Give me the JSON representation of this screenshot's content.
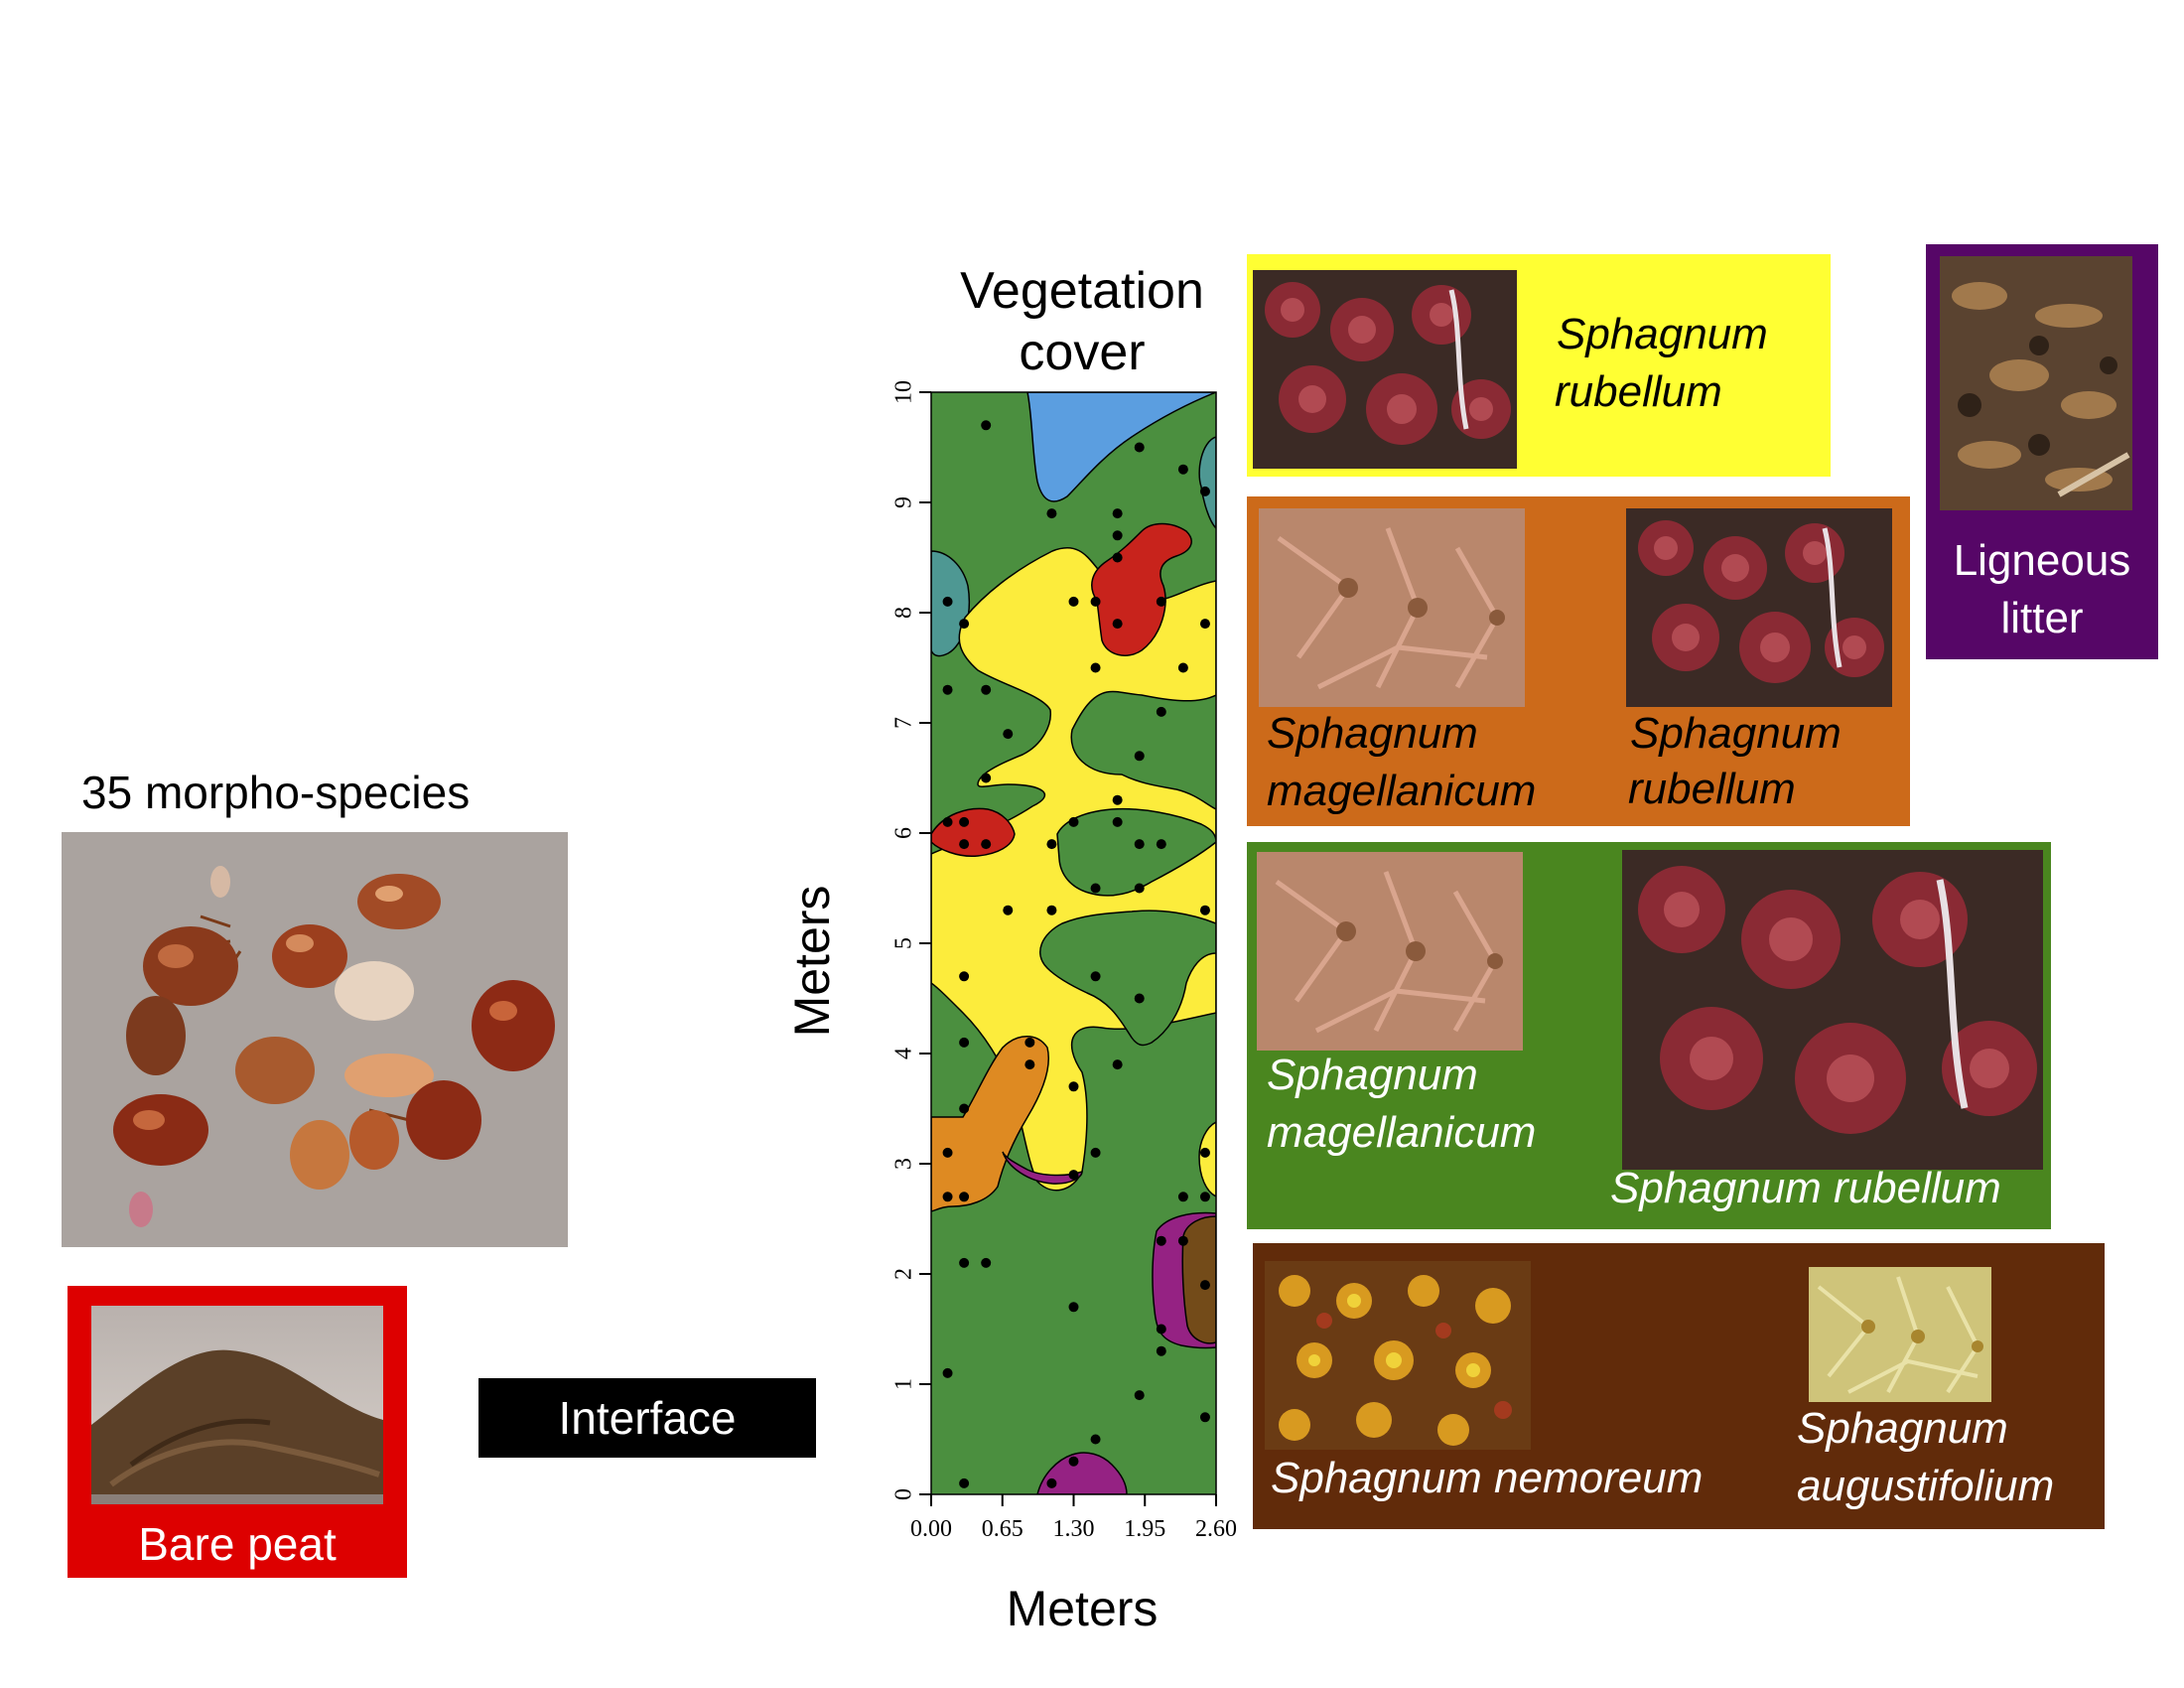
{
  "mites": {
    "caption": "35 morpho-species"
  },
  "bare_peat": {
    "label": "Bare peat",
    "color": "#dd0000"
  },
  "interface": {
    "label": "Interface",
    "color": "#000000"
  },
  "chart_data": {
    "type": "heatmap",
    "title": "Vegetation cover",
    "xlabel": "Meters",
    "ylabel": "Meters",
    "xlim": [
      0,
      2.6
    ],
    "ylim": [
      0,
      10
    ],
    "x_ticks": [
      "0.00",
      "0.65",
      "1.30",
      "1.95",
      "2.60"
    ],
    "y_ticks": [
      "0",
      "1",
      "2",
      "3",
      "4",
      "5",
      "6",
      "7",
      "8",
      "9",
      "10"
    ],
    "colors": {
      "background": "#4b8f3f",
      "yellow": "#fcec3c",
      "blue": "#5b9ee0",
      "teal": "#4e9893",
      "red": "#c8231c",
      "orange": "#de8a22",
      "purple": "#952283",
      "brown": "#734b19"
    },
    "points": [
      [
        0.5,
        9.7
      ],
      [
        1.1,
        8.9
      ],
      [
        1.9,
        9.5
      ],
      [
        2.3,
        9.3
      ],
      [
        2.5,
        9.1
      ],
      [
        1.7,
        8.9
      ],
      [
        1.7,
        8.7
      ],
      [
        1.7,
        8.5
      ],
      [
        0.15,
        8.1
      ],
      [
        0.3,
        7.9
      ],
      [
        1.3,
        8.1
      ],
      [
        1.5,
        8.1
      ],
      [
        1.7,
        7.9
      ],
      [
        2.1,
        8.1
      ],
      [
        2.5,
        7.9
      ],
      [
        1.5,
        7.5
      ],
      [
        2.3,
        7.5
      ],
      [
        0.15,
        7.3
      ],
      [
        0.5,
        7.3
      ],
      [
        2.1,
        7.1
      ],
      [
        0.7,
        6.9
      ],
      [
        1.9,
        6.7
      ],
      [
        0.5,
        6.5
      ],
      [
        1.7,
        6.3
      ],
      [
        0.15,
        6.1
      ],
      [
        0.3,
        6.1
      ],
      [
        0.5,
        5.9
      ],
      [
        1.3,
        6.1
      ],
      [
        1.7,
        6.1
      ],
      [
        0.3,
        5.9
      ],
      [
        1.1,
        5.9
      ],
      [
        1.9,
        5.9
      ],
      [
        2.1,
        5.9
      ],
      [
        1.5,
        5.5
      ],
      [
        1.9,
        5.5
      ],
      [
        0.7,
        5.3
      ],
      [
        1.1,
        5.3
      ],
      [
        2.5,
        5.3
      ],
      [
        0.3,
        4.7
      ],
      [
        1.5,
        4.7
      ],
      [
        1.9,
        4.5
      ],
      [
        0.3,
        4.1
      ],
      [
        0.9,
        4.1
      ],
      [
        0.9,
        3.9
      ],
      [
        1.7,
        3.9
      ],
      [
        1.3,
        3.7
      ],
      [
        0.3,
        3.5
      ],
      [
        0.15,
        3.1
      ],
      [
        1.5,
        3.1
      ],
      [
        2.5,
        3.1
      ],
      [
        1.3,
        2.9
      ],
      [
        0.15,
        2.7
      ],
      [
        0.3,
        2.7
      ],
      [
        2.3,
        2.7
      ],
      [
        2.5,
        2.7
      ],
      [
        2.1,
        2.3
      ],
      [
        2.3,
        2.3
      ],
      [
        0.3,
        2.1
      ],
      [
        0.5,
        2.1
      ],
      [
        2.5,
        1.9
      ],
      [
        1.3,
        1.7
      ],
      [
        2.1,
        1.5
      ],
      [
        2.1,
        1.3
      ],
      [
        0.15,
        1.1
      ],
      [
        1.9,
        0.9
      ],
      [
        2.5,
        0.7
      ],
      [
        1.5,
        0.5
      ],
      [
        1.3,
        0.3
      ],
      [
        0.3,
        0.1
      ],
      [
        1.1,
        0.1
      ]
    ]
  },
  "legend": {
    "yellow_panel": {
      "color": "#ffff33",
      "species": [
        "Sphagnum",
        "rubellum"
      ]
    },
    "orange_panel": {
      "color": "#cc6a1a",
      "species_a": [
        "Sphagnum",
        "magellanicum"
      ],
      "species_b": [
        "Sphagnum",
        "rubellum"
      ]
    },
    "green_panel": {
      "color": "#4a861f",
      "species_a": [
        "Sphagnum",
        "magellanicum"
      ],
      "species_b": "Sphagnum rubellum"
    },
    "brown_panel": {
      "color": "#612b0a",
      "species_a": "Sphagnum nemoreum",
      "species_b": [
        "Sphagnum",
        "augustifolium"
      ]
    },
    "purple_panel": {
      "color": "#560667",
      "label": [
        "Ligneous",
        "litter"
      ]
    }
  }
}
